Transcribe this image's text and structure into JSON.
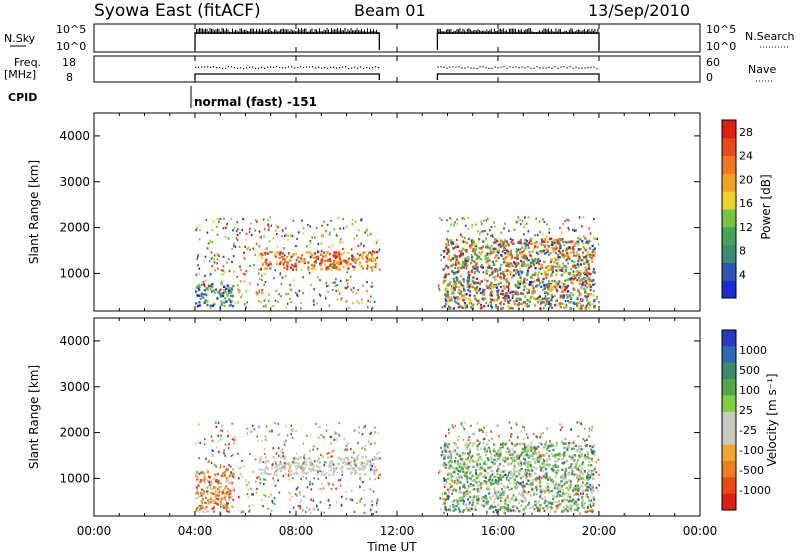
{
  "header": {
    "station": "Syowa East (fitACF)",
    "beam": "Beam 01",
    "date": "13/Sep/2010"
  },
  "strips": {
    "nsky_label": "N.Sky",
    "nsky_ticks": [
      "10^5",
      "10^0"
    ],
    "nsearch_label": "N.Search",
    "nsearch_ticks": [
      "10^5",
      "10^0"
    ],
    "freq_label_1": "Freq.",
    "freq_label_2": "[MHz]",
    "freq_ticks": [
      "18",
      "8"
    ],
    "nave_label": "Nave",
    "nave_ticks": [
      "60",
      "0"
    ],
    "cpid_label": "CPID",
    "cpid_text": "normal (fast) -151"
  },
  "axes": {
    "xlabel": "Time UT",
    "xticks": [
      "00:00",
      "04:00",
      "08:00",
      "12:00",
      "16:00",
      "20:00",
      "00:00"
    ],
    "ylabel": "Slant Range [km]",
    "yticks": [
      "1000",
      "2000",
      "3000",
      "4000"
    ]
  },
  "power_scale": {
    "label": "Power [dB]",
    "ticks": [
      "4",
      "8",
      "12",
      "16",
      "20",
      "24",
      "28"
    ],
    "colors": [
      "#1a2ad8",
      "#2e55b0",
      "#3f8a74",
      "#43a55a",
      "#74c63c",
      "#ecd42b",
      "#f2a322",
      "#ef7a1e",
      "#e84a18",
      "#dd2010"
    ]
  },
  "velocity_scale": {
    "label": "Velocity [m s⁻¹]",
    "ticks": [
      "1000",
      "500",
      "100",
      "25",
      "-25",
      "-100",
      "-500",
      "-1000"
    ],
    "colors": [
      "#2a3ac0",
      "#2f68b0",
      "#3b8a6a",
      "#52a847",
      "#7ecf42",
      "#c9c9c0",
      "#c9c9c0",
      "#f0a730",
      "#ee7f1e",
      "#e94a14",
      "#df1d10"
    ]
  },
  "chart_data": {
    "type": "heatmap",
    "x_unit": "hours UT",
    "xlim": [
      0,
      24
    ],
    "ylim": [
      180,
      4500
    ],
    "operating_intervals": [
      [
        4.0,
        11.3
      ],
      [
        13.6,
        20.0
      ]
    ],
    "power_echo_regions": [
      {
        "t0": 4.0,
        "t1": 5.5,
        "r0": 300,
        "r1": 800,
        "level": "blue-green"
      },
      {
        "t0": 6.5,
        "t1": 11.2,
        "r0": 1100,
        "r1": 1500,
        "level": "orange-red"
      },
      {
        "t0": 13.8,
        "t1": 19.8,
        "r0": 250,
        "r1": 1800,
        "level": "mixed"
      }
    ],
    "velocity_echo_regions": [
      {
        "t0": 6.5,
        "t1": 11.2,
        "r0": 1100,
        "r1": 1500,
        "level": "near zero"
      },
      {
        "t0": 4.0,
        "t1": 5.5,
        "r0": 300,
        "r1": 1200,
        "level": "negative"
      },
      {
        "t0": 13.8,
        "t1": 19.8,
        "r0": 300,
        "r1": 1800,
        "level": "positive"
      }
    ]
  }
}
